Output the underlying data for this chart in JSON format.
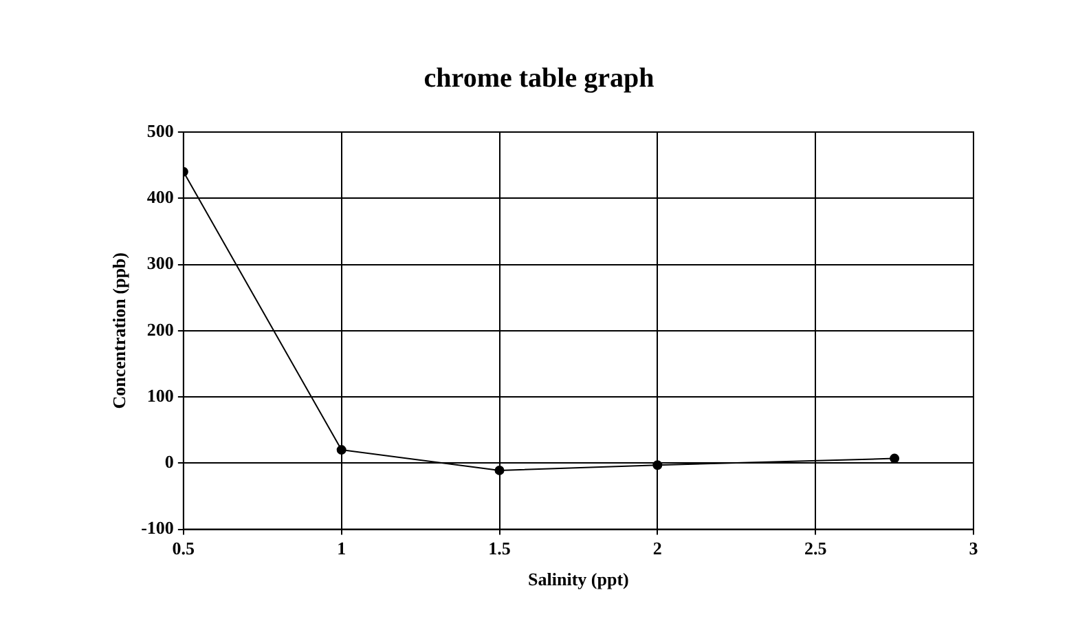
{
  "chart_data": {
    "type": "line",
    "title": "chrome table graph",
    "xlabel": "Salinity (ppt)",
    "ylabel": "Concentration (ppb)",
    "x": [
      0.5,
      1,
      1.5,
      2,
      2.75
    ],
    "series": [
      {
        "color": "#000000",
        "values": [
          440,
          20,
          -11,
          -3,
          7
        ]
      }
    ],
    "xlim": [
      0.5,
      3
    ],
    "xticks": [
      0.5,
      1,
      1.5,
      2,
      2.5,
      3
    ],
    "ylim": [
      -100,
      500
    ],
    "yticks": [
      -100,
      0,
      100,
      200,
      300,
      400,
      500
    ],
    "grid": true,
    "legend": false,
    "marker": "circle",
    "line_style": "solid"
  }
}
